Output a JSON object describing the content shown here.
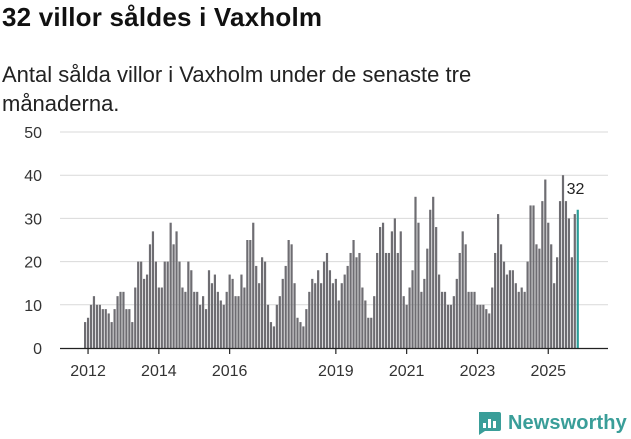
{
  "header": {
    "title": "32 villor såldes i Vaxholm",
    "subtitle": "Antal sålda villor i Vaxholm under de senaste tre månaderna."
  },
  "brand": {
    "name": "Newsworthy",
    "color": "#3a9e99"
  },
  "colors": {
    "bar": "#6e6d72",
    "highlight": "#2a9d98",
    "grid": "#d9d9d9",
    "axis": "#222222"
  },
  "chart_data": {
    "type": "bar",
    "title": "32 villor såldes i Vaxholm",
    "subtitle": "Antal sålda villor i Vaxholm under de senaste tre månaderna.",
    "xlabel": "",
    "ylabel": "",
    "ylim": [
      0,
      50
    ],
    "yticks": [
      0,
      10,
      20,
      30,
      40,
      50
    ],
    "x_start": "2011-12",
    "x_ticks": [
      {
        "label": "2012",
        "index": 1
      },
      {
        "label": "2014",
        "index": 25
      },
      {
        "label": "2016",
        "index": 49
      },
      {
        "label": "2019",
        "index": 85
      },
      {
        "label": "2021",
        "index": 109
      },
      {
        "label": "2023",
        "index": 133
      },
      {
        "label": "2025",
        "index": 157
      }
    ],
    "values": [
      6,
      7,
      10,
      12,
      10,
      10,
      9,
      9,
      8,
      6,
      9,
      12,
      13,
      13,
      9,
      9,
      6,
      14,
      20,
      20,
      16,
      17,
      24,
      27,
      20,
      14,
      14,
      20,
      20,
      29,
      24,
      27,
      20,
      14,
      13,
      20,
      18,
      13,
      13,
      10,
      12,
      9,
      18,
      15,
      17,
      13,
      11,
      10,
      13,
      17,
      16,
      12,
      12,
      17,
      14,
      25,
      25,
      29,
      19,
      15,
      21,
      20,
      10,
      6,
      5,
      10,
      12,
      16,
      19,
      25,
      24,
      15,
      7,
      6,
      5,
      9,
      13,
      16,
      15,
      18,
      15,
      20,
      22,
      18,
      15,
      16,
      11,
      15,
      17,
      19,
      22,
      25,
      21,
      22,
      14,
      11,
      7,
      7,
      12,
      22,
      28,
      29,
      22,
      22,
      27,
      30,
      22,
      27,
      12,
      10,
      14,
      18,
      35,
      29,
      13,
      16,
      23,
      32,
      35,
      28,
      17,
      13,
      13,
      10,
      10,
      12,
      16,
      22,
      27,
      24,
      13,
      13,
      13,
      10,
      10,
      10,
      9,
      8,
      14,
      22,
      31,
      24,
      20,
      17,
      18,
      18,
      15,
      13,
      14,
      13,
      20,
      33,
      33,
      24,
      23,
      34,
      39,
      29,
      24,
      15,
      21,
      34,
      40,
      34,
      30,
      21,
      31,
      32
    ],
    "highlight_last": true,
    "last_label": "32"
  }
}
